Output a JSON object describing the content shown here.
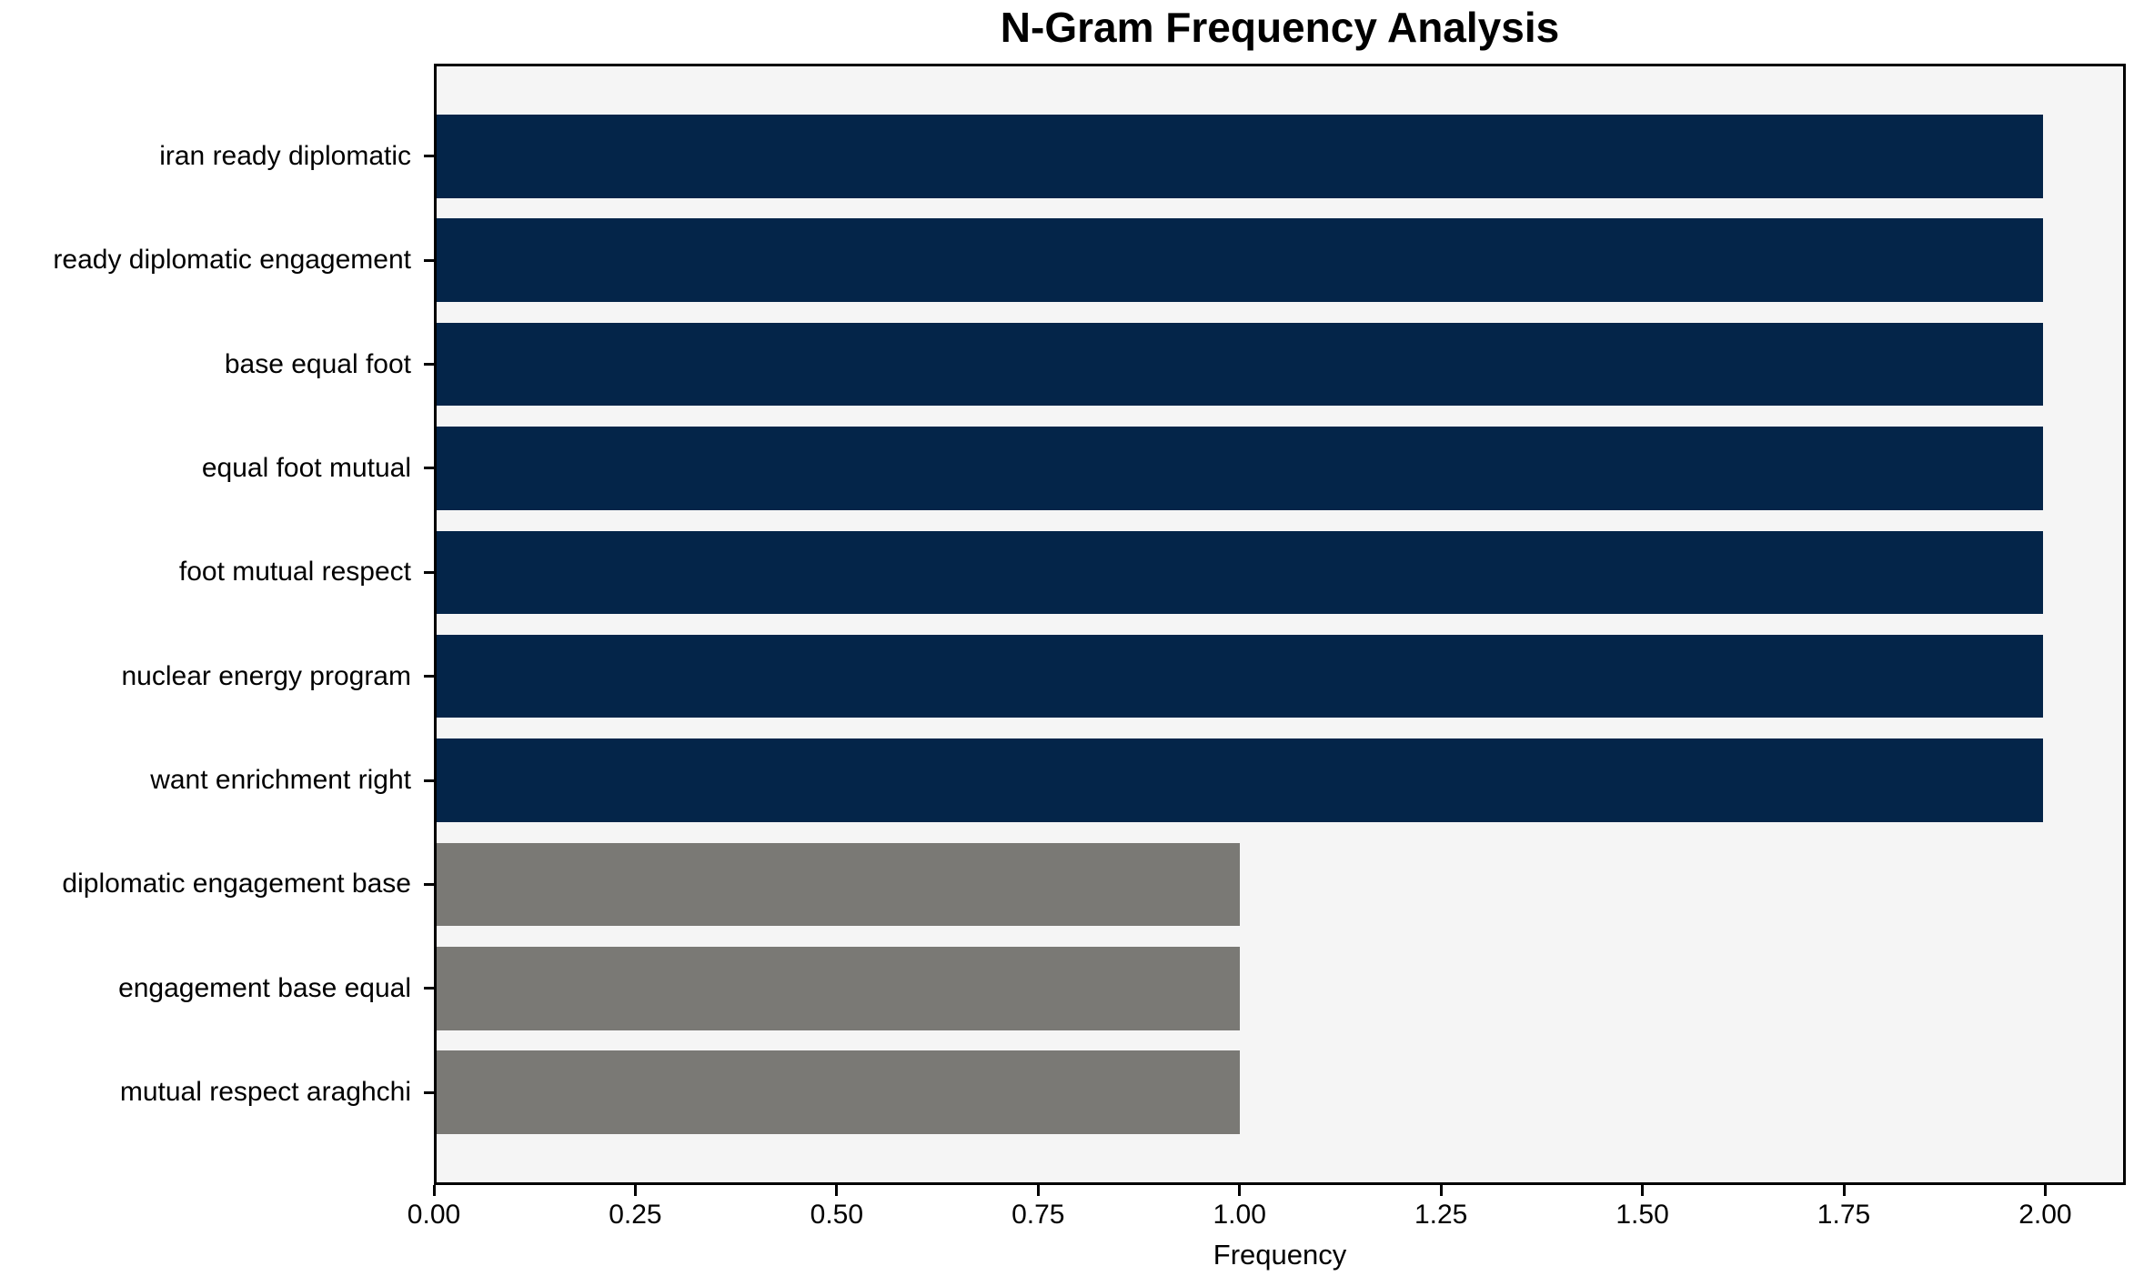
{
  "chart_data": {
    "type": "bar",
    "orientation": "horizontal",
    "title": "N-Gram Frequency Analysis",
    "xlabel": "Frequency",
    "ylabel": "",
    "categories": [
      "iran ready diplomatic",
      "ready diplomatic engagement",
      "base equal foot",
      "equal foot mutual",
      "foot mutual respect",
      "nuclear energy program",
      "want enrichment right",
      "diplomatic engagement base",
      "engagement base equal",
      "mutual respect araghchi"
    ],
    "values": [
      2,
      2,
      2,
      2,
      2,
      2,
      2,
      1,
      1,
      1
    ],
    "bar_colors": [
      "#042549",
      "#042549",
      "#042549",
      "#042549",
      "#042549",
      "#042549",
      "#042549",
      "#7a7975",
      "#7a7975",
      "#7a7975"
    ],
    "xlim": [
      0,
      2.1
    ],
    "xticks": [
      0,
      0.25,
      0.5,
      0.75,
      1,
      1.25,
      1.5,
      1.75,
      2
    ],
    "xtick_labels": [
      "0.00",
      "0.25",
      "0.50",
      "0.75",
      "1.00",
      "1.25",
      "1.50",
      "1.75",
      "2.00"
    ],
    "grid": false,
    "legend": "none",
    "bar_height_fraction": 0.8,
    "colors": {
      "frequency_2_bar": "#042549",
      "frequency_1_bar": "#7a7975",
      "plot_background": "#f5f5f5",
      "figure_background": "#ffffff",
      "axis": "#000000",
      "text": "#000000"
    }
  }
}
